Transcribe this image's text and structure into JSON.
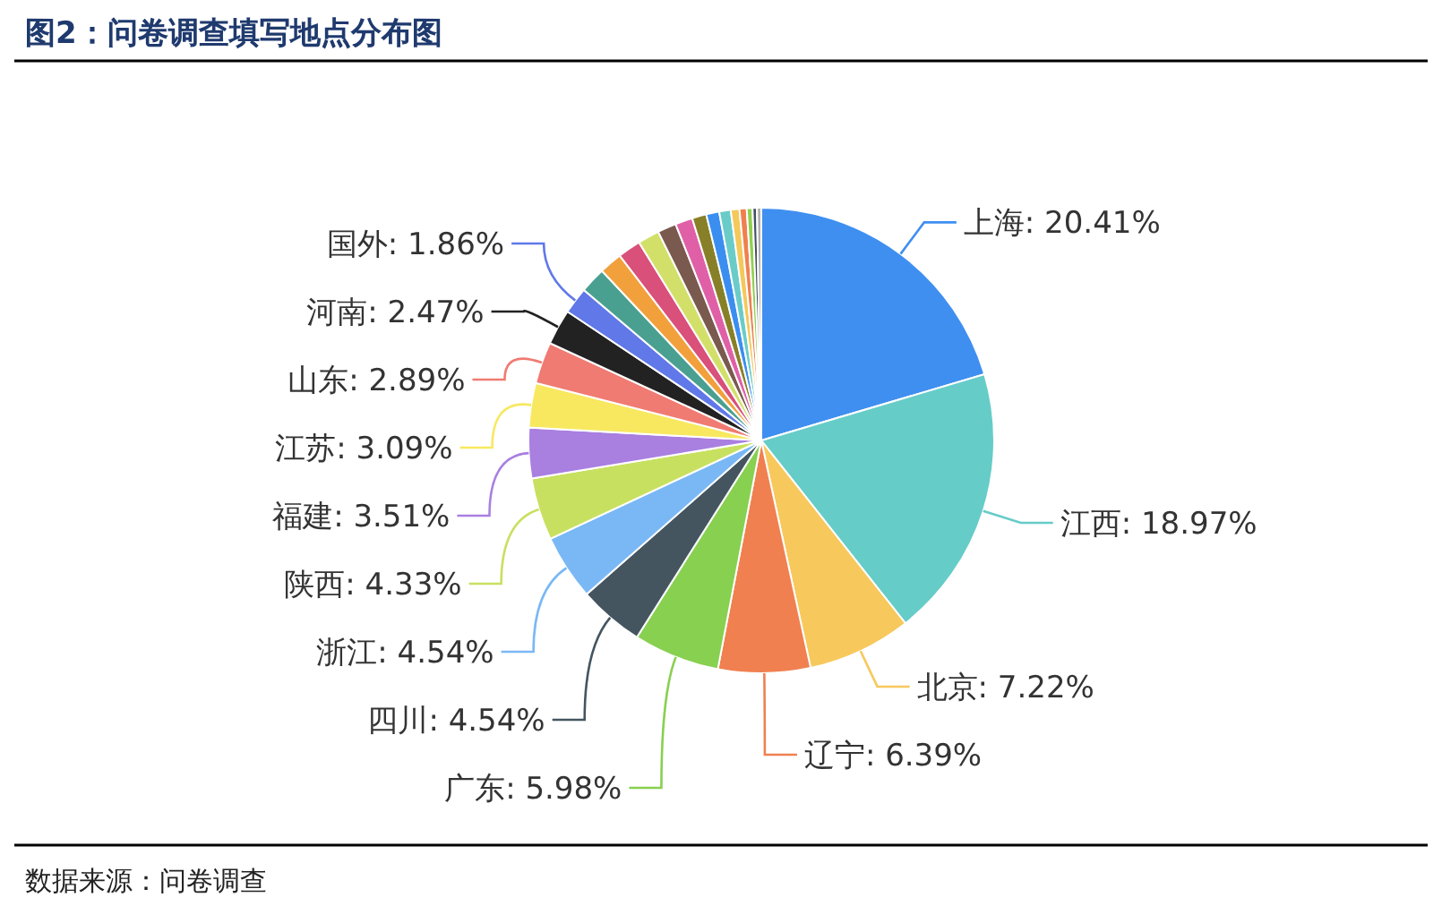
{
  "chart_data": {
    "type": "pie",
    "title": "图2：问卷调查填写地点分布图",
    "categories": [
      "上海",
      "江西",
      "北京",
      "辽宁",
      "广东",
      "四川",
      "浙江",
      "陕西",
      "福建",
      "江苏",
      "山东",
      "河南",
      "国外",
      null,
      null,
      null,
      null,
      null,
      null,
      null,
      null,
      null,
      null,
      null,
      null,
      null,
      null
    ],
    "values": [
      20.41,
      18.97,
      7.22,
      6.39,
      5.98,
      4.54,
      4.54,
      4.33,
      3.51,
      3.09,
      2.89,
      2.47,
      1.86,
      1.8,
      1.6,
      1.6,
      1.5,
      1.3,
      1.2,
      1.0,
      0.9,
      0.8,
      0.6,
      0.5,
      0.4,
      0.3,
      0.3
    ],
    "value_labels": [
      "20.41%",
      "18.97%",
      "7.22%",
      "6.39%",
      "5.98%",
      "4.54%",
      "4.54%",
      "4.33%",
      "3.51%",
      "3.09%",
      "2.89%",
      "2.47%",
      "1.86%",
      null,
      null,
      null,
      null,
      null,
      null,
      null,
      null,
      null,
      null,
      null,
      null,
      null,
      null
    ],
    "colors": [
      "#3f8ff0",
      "#66ccc8",
      "#f7c85c",
      "#f08050",
      "#88d050",
      "#445560",
      "#7ab8f5",
      "#c8e060",
      "#a97fe0",
      "#f8e860",
      "#f07b72",
      "#222222",
      "#6078e8",
      "#4aa090",
      "#f2a03c",
      "#d9507a",
      "#d2e06a",
      "#7a5a4e",
      "#e060a8",
      "#888028",
      "#3a8ef0",
      "#6accc8",
      "#f5c85a",
      "#f08050",
      "#90d050",
      "#445060",
      "#b0b0b0"
    ],
    "annotations": [
      "数据来源：问卷调查"
    ]
  }
}
